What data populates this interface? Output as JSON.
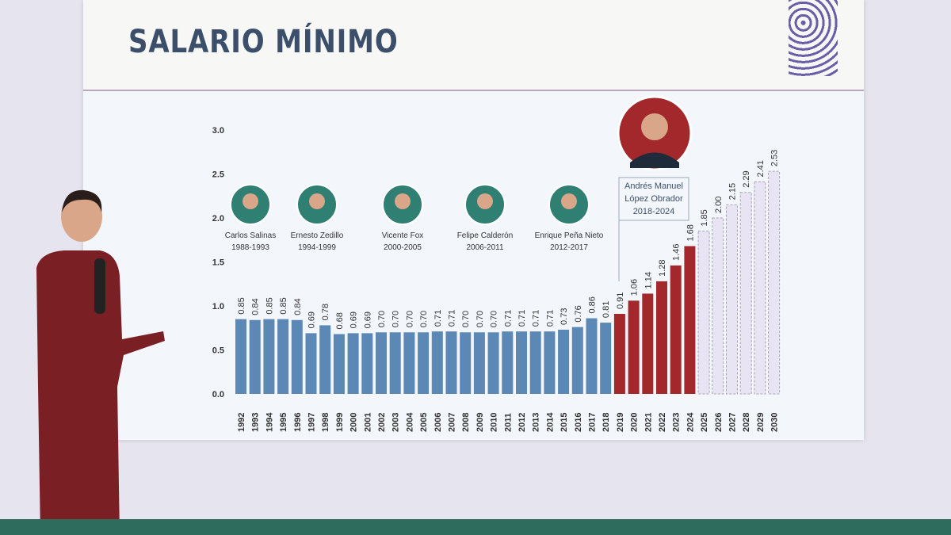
{
  "title": "SALARIO MÍNIMO",
  "colors": {
    "neoliberal": "#5b88b5",
    "amlo": "#a3282b",
    "projection": "#e9e4f3",
    "title": "#3b4f6b"
  },
  "presidents": [
    {
      "name": "Carlos Salinas",
      "term": "1988-1993"
    },
    {
      "name": "Ernesto Zedillo",
      "term": "1994-1999"
    },
    {
      "name": "Vicente Fox",
      "term": "2000-2005"
    },
    {
      "name": "Felipe Calderón",
      "term": "2006-2011"
    },
    {
      "name": "Enrique Peña Nieto",
      "term": "2012-2017"
    },
    {
      "name": "Andrés Manuel López Obrador",
      "name_line1": "Andrés Manuel",
      "name_line2": "López Obrador",
      "term": "2018-2024"
    }
  ],
  "chart_data": {
    "type": "bar",
    "title": "SALARIO MÍNIMO",
    "ylim": [
      0,
      3.0
    ],
    "yticks": [
      "0.0",
      "0.5",
      "1.0",
      "1.5",
      "2.0",
      "2.5",
      "3.0"
    ],
    "grid": false,
    "categories": [
      "1992",
      "1993",
      "1994",
      "1995",
      "1996",
      "1997",
      "1998",
      "1999",
      "2000",
      "2001",
      "2002",
      "2003",
      "2004",
      "2005",
      "2006",
      "2007",
      "2008",
      "2009",
      "2010",
      "2011",
      "2012",
      "2013",
      "2014",
      "2015",
      "2016",
      "2017",
      "2018",
      "2019",
      "2020",
      "2021",
      "2022",
      "2023",
      "2024",
      "2025",
      "2026",
      "2027",
      "2028",
      "2029",
      "2030"
    ],
    "values": [
      0.85,
      0.84,
      0.85,
      0.85,
      0.84,
      0.69,
      0.78,
      0.68,
      0.69,
      0.69,
      0.7,
      0.7,
      0.7,
      0.7,
      0.71,
      0.71,
      0.7,
      0.7,
      0.7,
      0.71,
      0.71,
      0.71,
      0.71,
      0.73,
      0.76,
      0.86,
      0.81,
      0.91,
      1.06,
      1.14,
      1.28,
      1.46,
      1.68,
      1.85,
      2.0,
      2.15,
      2.29,
      2.41,
      2.53
    ],
    "labels": [
      "0.85",
      "0.84",
      "0.85",
      "0.85",
      "0.84",
      "0.69",
      "0.78",
      "0.68",
      "0.69",
      "0.69",
      "0.70",
      "0.70",
      "0.70",
      "0.70",
      "0.71",
      "0.71",
      "0.70",
      "0.70",
      "0.70",
      "0.71",
      "0.71",
      "0.71",
      "0.71",
      "0.73",
      "0.76",
      "0.86",
      "0.81",
      "0.91",
      "1.06",
      "1.14",
      "1.28",
      "1.46",
      "1.68",
      "1.85",
      "2.00",
      "2.15",
      "2.29",
      "2.41",
      "2.53"
    ],
    "styles": {
      "blue_until": "2018",
      "red_until": "2024",
      "dashed_projection_from": "2025"
    }
  }
}
